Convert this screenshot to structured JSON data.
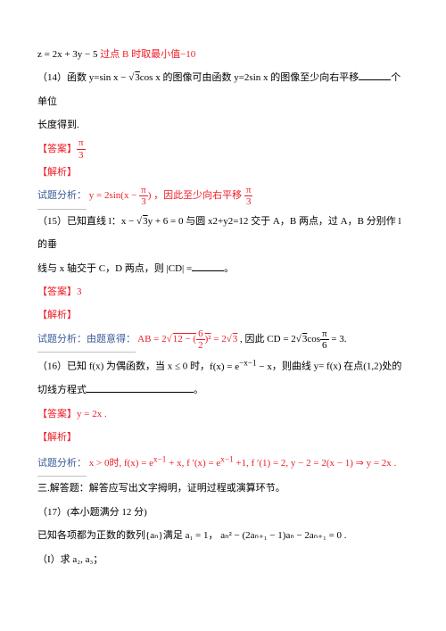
{
  "l1_a": "z = 2x + 3y − 5 ",
  "l1_b": "过点 B 时取最小值−10",
  "l2_a": "（14）函数 y=sin x − ",
  "l2_b": "cos x 的图像可由函数 y=2sin x 的图像至少向右平移",
  "l2_c": "个单位",
  "l3": "长度得到.",
  "ans_label": "【答案】",
  "ans14_num": "π",
  "ans14_den": "3",
  "jiexi": "【解析】",
  "l5_a": "试题分析：",
  "l5_b": "y = 2sin(x − ",
  "l5_c": ") ，因此至少向右平移 ",
  "l5_num": "π",
  "l5_den": "3",
  "l6_a": "（15）已知直线 l：",
  "l6_b": "x − ",
  "l6_c": "y + 6 = 0",
  "l6_d": " 与圆 x2+y2=12 交于 A，B 两点，过 A，B 分别作 l 的垂",
  "l7": "线与 x 轴交于 C，D 两点，则 |CD| =",
  "l7_period": "。",
  "ans15": "3",
  "l9_a": "试题分析：由题意得：",
  "l9_b": "AB = 2",
  "l9_c": " = 2",
  "l9_c2": " , 因此 CD = 2",
  "l9_d": "cos",
  "l9_e": " = 3.",
  "l9_num": "π",
  "l9_den": "6",
  "l9_root_inner": "12 − (",
  "l9_root_frac_num": "6",
  "l9_root_frac_den": "2",
  "l9_root_close": ")²",
  "l9_sqrt3": "3",
  "l10_a": "（16）已知 f(x) 为偶函数，当 ",
  "l10_b": "x ≤ 0",
  "l10_c": " 时，",
  "l10_d": "f(x) = e",
  "l10_e": " − x",
  "l10_sup": "−x−1",
  "l10_f": "，则曲线 y= f(x) 在点(1,2)处的",
  "l11": "切线方程式",
  "l11_period": "。",
  "ans16": "y = 2x .",
  "l13_a": "试题分析：",
  "l13_b": "x > 0时, f(x) = e",
  "l13_sup1": "x−1",
  "l13_c": " + x, f ′(x) = e",
  "l13_sup2": "x−1",
  "l13_d": " +1,  f ′(1) = 2, y − 2 = 2(x − 1) ⇒ y = 2x .",
  "l14": "三.解答题：解答应写出文字拇明，证明过程或演算环节。",
  "l15": "（17）(本小题满分 12 分)",
  "l16_a": "已知各项都为正数的数列",
  "l16_b": "{aₙ}",
  "l16_c": "满足 a₁ = 1， aₙ² − (2aₙ₊₁ − 1)aₙ − 2aₙ₊₁ = 0 .",
  "l17": "（I）求 a₂, a₃；"
}
